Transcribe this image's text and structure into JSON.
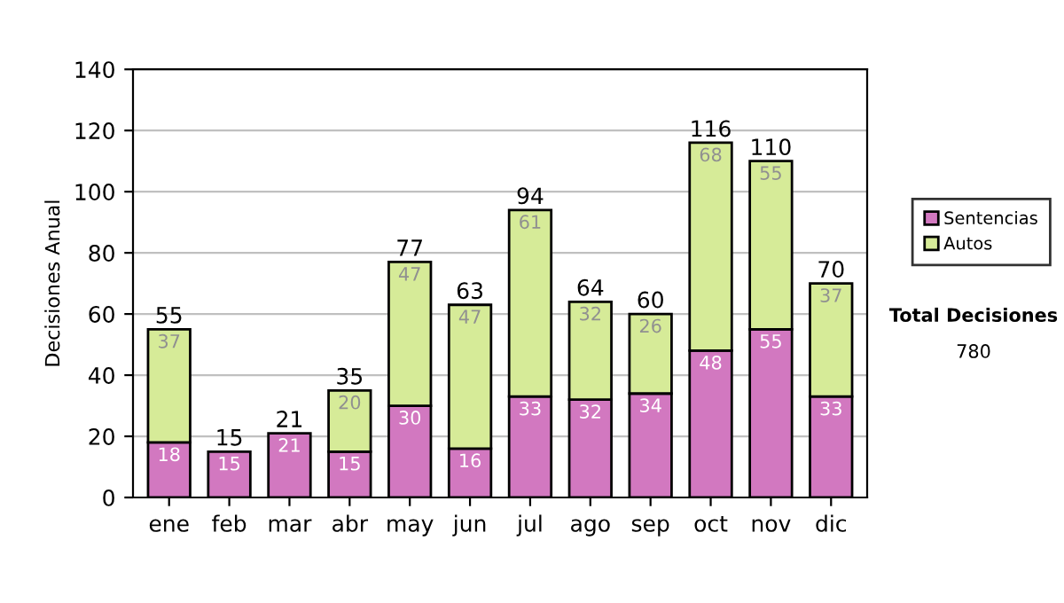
{
  "chart_data": {
    "type": "bar",
    "stacked": true,
    "ylabel": "Decisiones Anual",
    "categories": [
      "ene",
      "feb",
      "mar",
      "abr",
      "may",
      "jun",
      "jul",
      "ago",
      "sep",
      "oct",
      "nov",
      "dic"
    ],
    "series": [
      {
        "name": "Sentencias",
        "color": "#d278c0",
        "values": [
          18,
          15,
          21,
          15,
          30,
          16,
          33,
          32,
          34,
          48,
          55,
          33
        ],
        "value_labels": [
          "18",
          "15",
          "21",
          "15",
          "30",
          "16",
          "33",
          "32",
          "34",
          "48",
          "55",
          "33"
        ]
      },
      {
        "name": "Autos",
        "color": "#d6eb98",
        "values": [
          37,
          null,
          null,
          20,
          47,
          47,
          61,
          32,
          26,
          68,
          55,
          37
        ],
        "value_labels": [
          "37",
          null,
          null,
          "20",
          "47",
          "47",
          "61",
          "32",
          "26",
          "68",
          "55",
          "37"
        ]
      }
    ],
    "totals": [
      "55",
      "15",
      "21",
      "35",
      "77",
      "63",
      "94",
      "64",
      "60",
      "116",
      "110",
      "70"
    ],
    "ylim": [
      0,
      140
    ],
    "yticks": [
      0,
      20,
      40,
      60,
      80,
      100,
      120,
      140
    ],
    "grid": "y",
    "legend": "right",
    "annotations": [
      "Total Decisiones",
      "780"
    ]
  }
}
